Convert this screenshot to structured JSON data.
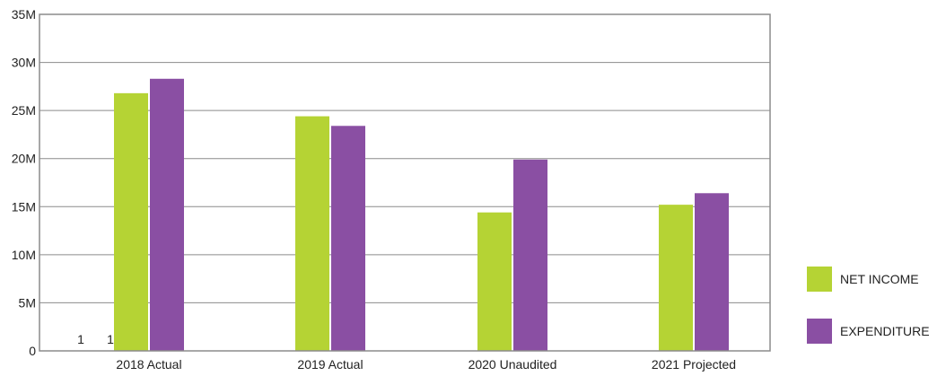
{
  "chart_data": {
    "type": "bar",
    "categories": [
      "2018 Actual",
      "2019 Actual",
      "2020 Unaudited",
      "2021 Projected"
    ],
    "series": [
      {
        "name": "NET INCOME",
        "color": "#b5d334",
        "values": [
          26.8,
          24.4,
          14.4,
          15.2
        ]
      },
      {
        "name": "EXPENDITURE",
        "color": "#8a4fa3",
        "values": [
          28.3,
          23.4,
          19.9,
          16.4
        ]
      }
    ],
    "yticks": [
      {
        "value": 0,
        "label": "0"
      },
      {
        "value": 5,
        "label": "5M"
      },
      {
        "value": 10,
        "label": "10M"
      },
      {
        "value": 15,
        "label": "15M"
      },
      {
        "value": 20,
        "label": "20M"
      },
      {
        "value": 25,
        "label": "25M"
      },
      {
        "value": 30,
        "label": "30M"
      },
      {
        "value": 35,
        "label": "35M"
      }
    ],
    "ylim": [
      0,
      35
    ],
    "grid": true,
    "legend_position": "right-bottom",
    "annotations": [
      "1",
      "1"
    ]
  }
}
